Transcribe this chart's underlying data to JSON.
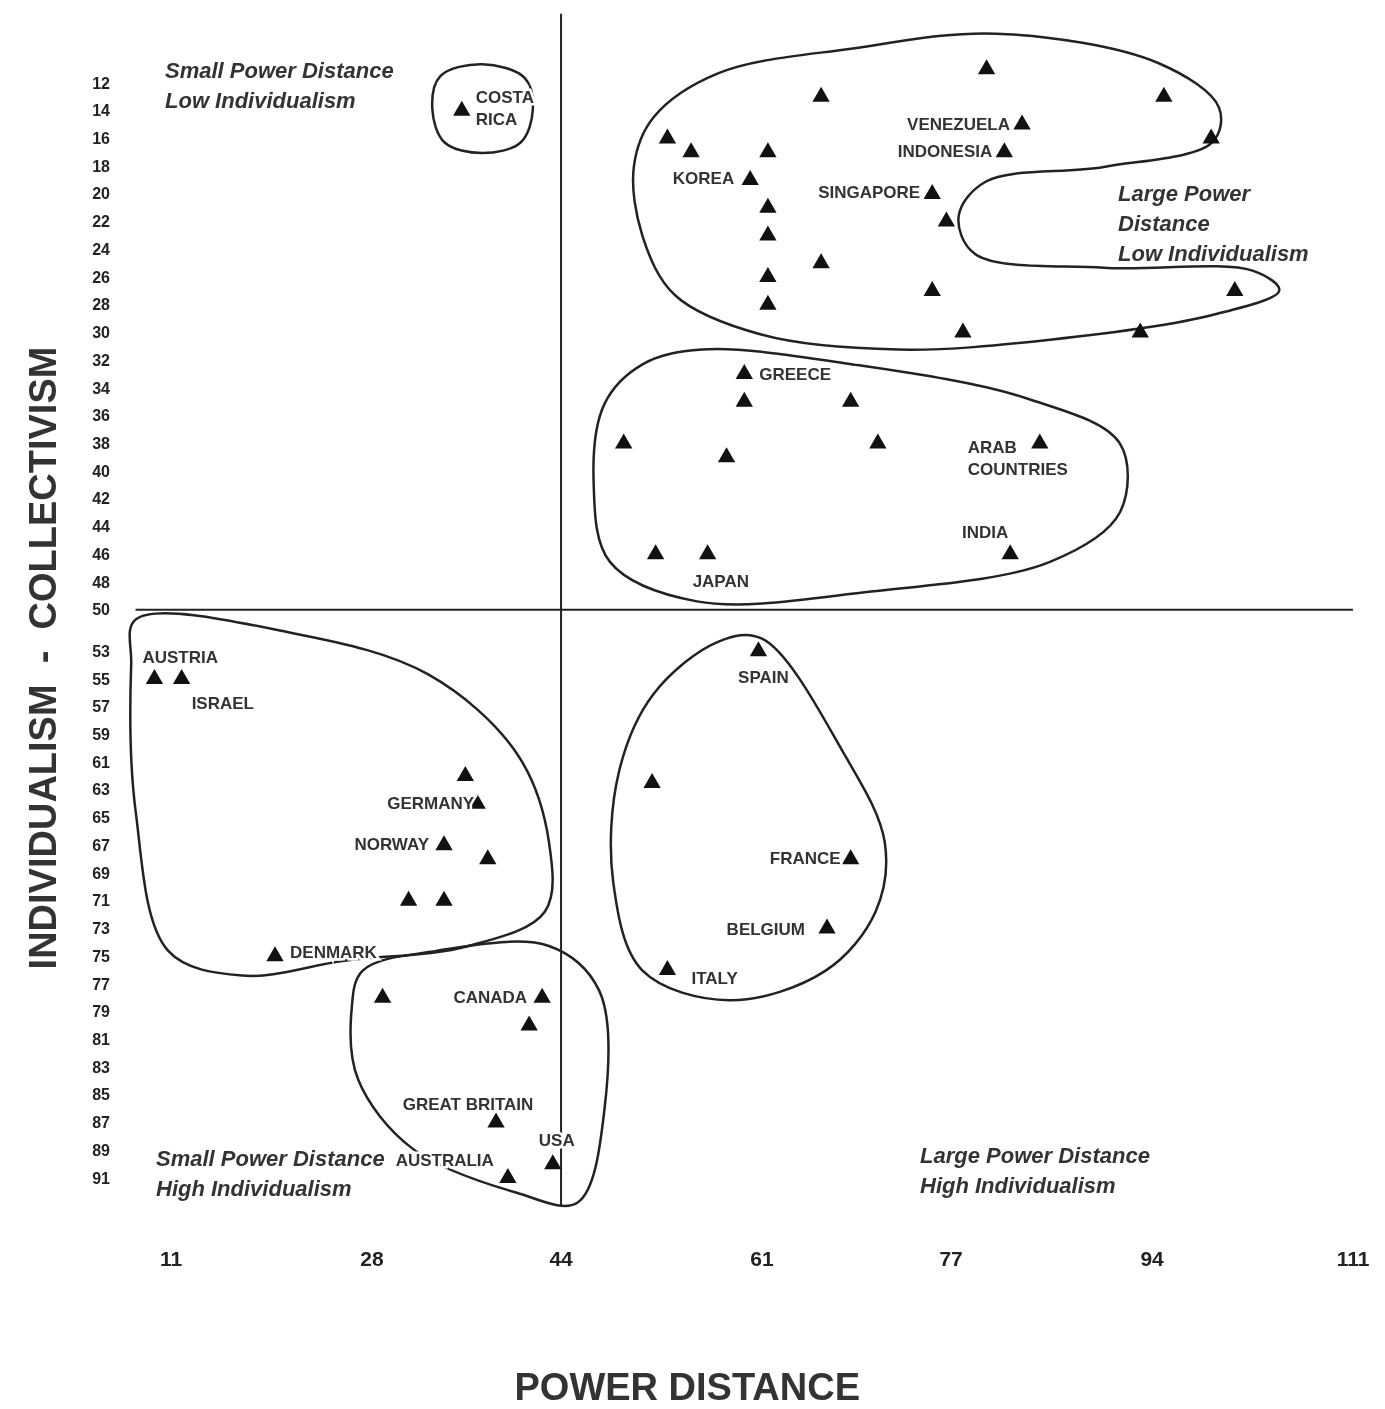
{
  "chart_data": {
    "type": "scatter",
    "xlabel": "POWER DISTANCE",
    "ylabel": "INDIVIDUALISM  -  COLLECTIVISM",
    "xlim": [
      8,
      111
    ],
    "ylim": [
      93,
      7
    ],
    "xticks": [
      11,
      28,
      44,
      61,
      77,
      94,
      111
    ],
    "yticks": [
      12,
      14,
      16,
      18,
      20,
      22,
      24,
      26,
      28,
      30,
      32,
      34,
      36,
      38,
      40,
      42,
      44,
      46,
      48,
      50,
      53,
      55,
      57,
      59,
      61,
      63,
      65,
      67,
      69,
      71,
      73,
      75,
      77,
      79,
      81,
      83,
      85,
      87,
      89,
      91
    ],
    "grid": false,
    "marker": "triangle",
    "series": [
      {
        "color": "#111111",
        "x": [
          80,
          66,
          95,
          83,
          99,
          53,
          55,
          61.5,
          81.5,
          60,
          75.4,
          76.6,
          61.5,
          61.5,
          66,
          61.5,
          61.5,
          75.4,
          101,
          78,
          93,
          59.5,
          59.5,
          68.5,
          49.3,
          70.8,
          58,
          84.5,
          82,
          52,
          56.4,
          35.6,
          9.6,
          11.9,
          19.8,
          35.9,
          36.9,
          34.1,
          37.8,
          31.1,
          34.1,
          28.9,
          42.4,
          41.3,
          38.5,
          39.5,
          43.3,
          60.7,
          51.7,
          68.5,
          66.5,
          53
        ],
        "values": [
          11,
          13,
          13,
          15,
          16,
          16,
          17,
          17,
          17,
          19,
          20,
          22,
          21,
          23,
          25,
          26,
          28,
          27,
          27,
          30,
          30,
          33,
          35,
          35,
          38,
          38,
          39,
          38,
          46,
          46,
          46,
          14,
          55,
          55,
          75,
          62,
          64,
          67,
          68,
          71,
          71,
          78,
          78,
          80,
          87,
          91,
          90,
          53,
          62.5,
          68,
          73,
          76
        ]
      }
    ],
    "ref_lines": [
      {
        "axis": "x",
        "value": 44
      },
      {
        "axis": "y",
        "value": 50
      }
    ],
    "annotations": [
      "Small Power Distance\nLow Individualism",
      "Large Power\nDistance\nLow Individualism",
      "Small Power Distance\nHigh Individualism",
      "Large Power Distance\nHigh Individualism",
      {
        "text": "COSTA\nRICA",
        "x": 35.6,
        "y": 14
      },
      {
        "text": "VENEZUELA",
        "x": 83,
        "y": 15
      },
      {
        "text": "INDONESIA",
        "x": 81.5,
        "y": 17
      },
      {
        "text": "KOREA",
        "x": 60,
        "y": 19
      },
      {
        "text": "SINGAPORE",
        "x": 75.4,
        "y": 20
      },
      {
        "text": "GREECE",
        "x": 59.5,
        "y": 33
      },
      {
        "text": "ARAB\nCOUNTRIES",
        "x": 84.5,
        "y": 38
      },
      {
        "text": "INDIA",
        "x": 82,
        "y": 46
      },
      {
        "text": "JAPAN",
        "x": 56.4,
        "y": 46
      },
      {
        "text": "AUSTRIA",
        "x": 9.6,
        "y": 55
      },
      {
        "text": "ISRAEL",
        "x": 11.9,
        "y": 55
      },
      {
        "text": "GERMANY",
        "x": 36.9,
        "y": 64
      },
      {
        "text": "NORWAY",
        "x": 34.1,
        "y": 67
      },
      {
        "text": "DENMARK",
        "x": 19.8,
        "y": 75
      },
      {
        "text": "CANADA",
        "x": 42.4,
        "y": 78
      },
      {
        "text": "GREAT BRITAIN",
        "x": 38.5,
        "y": 87
      },
      {
        "text": "AUSTRALIA",
        "x": 39.5,
        "y": 91
      },
      {
        "text": "USA",
        "x": 43.3,
        "y": 90
      },
      {
        "text": "SPAIN",
        "x": 60.7,
        "y": 53
      },
      {
        "text": "FRANCE",
        "x": 68.5,
        "y": 68
      },
      {
        "text": "BELGIUM",
        "x": 66.5,
        "y": 73
      },
      {
        "text": "ITALY",
        "x": 53,
        "y": 76
      }
    ]
  }
}
